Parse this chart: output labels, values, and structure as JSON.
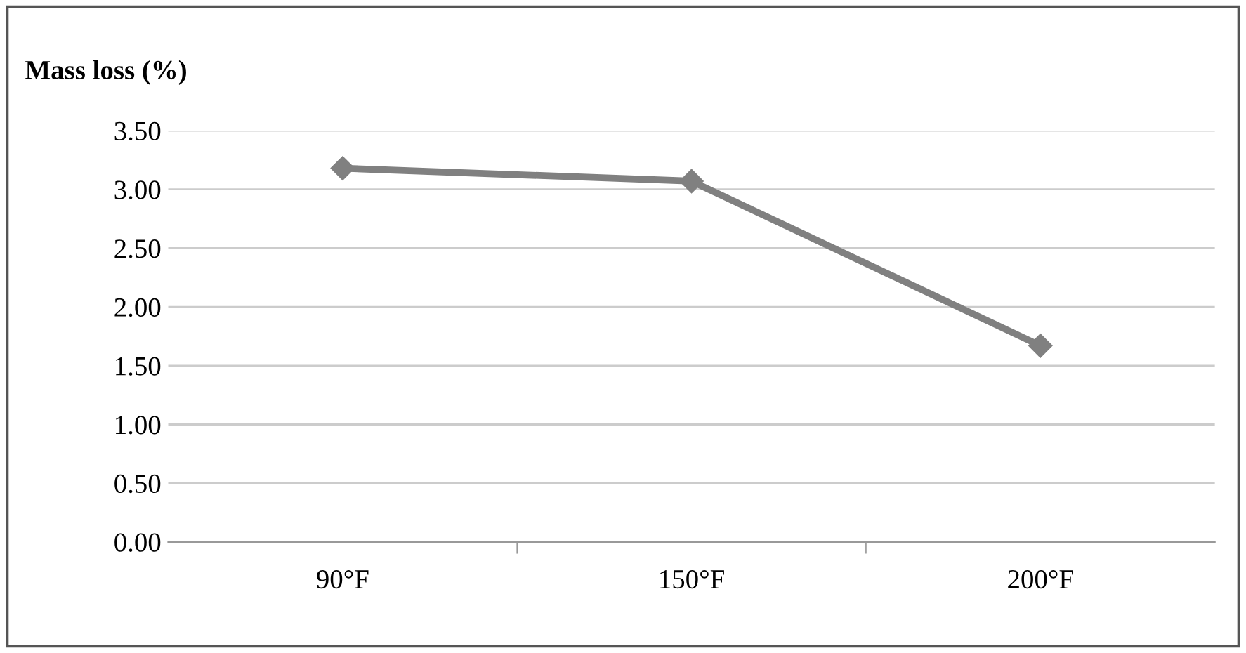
{
  "chart_data": {
    "type": "line",
    "ylabel": "Mass loss (%)",
    "categories": [
      "90°F",
      "150°F",
      "200°F"
    ],
    "series": [
      {
        "color": "#808080",
        "values": [
          3.18,
          3.07,
          1.67
        ]
      }
    ],
    "ylim": [
      0,
      3.5
    ],
    "yticks": [
      {
        "value": 0,
        "label": "0.00"
      },
      {
        "value": 0.5,
        "label": "0.50"
      },
      {
        "value": 1,
        "label": "1.00"
      },
      {
        "value": 1.5,
        "label": "1.50"
      },
      {
        "value": 2,
        "label": "2.00"
      },
      {
        "value": 2.5,
        "label": "2.50"
      },
      {
        "value": 3,
        "label": "3.00"
      },
      {
        "value": 3.5,
        "label": "3.50"
      }
    ],
    "grid": "y",
    "marker": "diamond",
    "line_style": "solid"
  }
}
